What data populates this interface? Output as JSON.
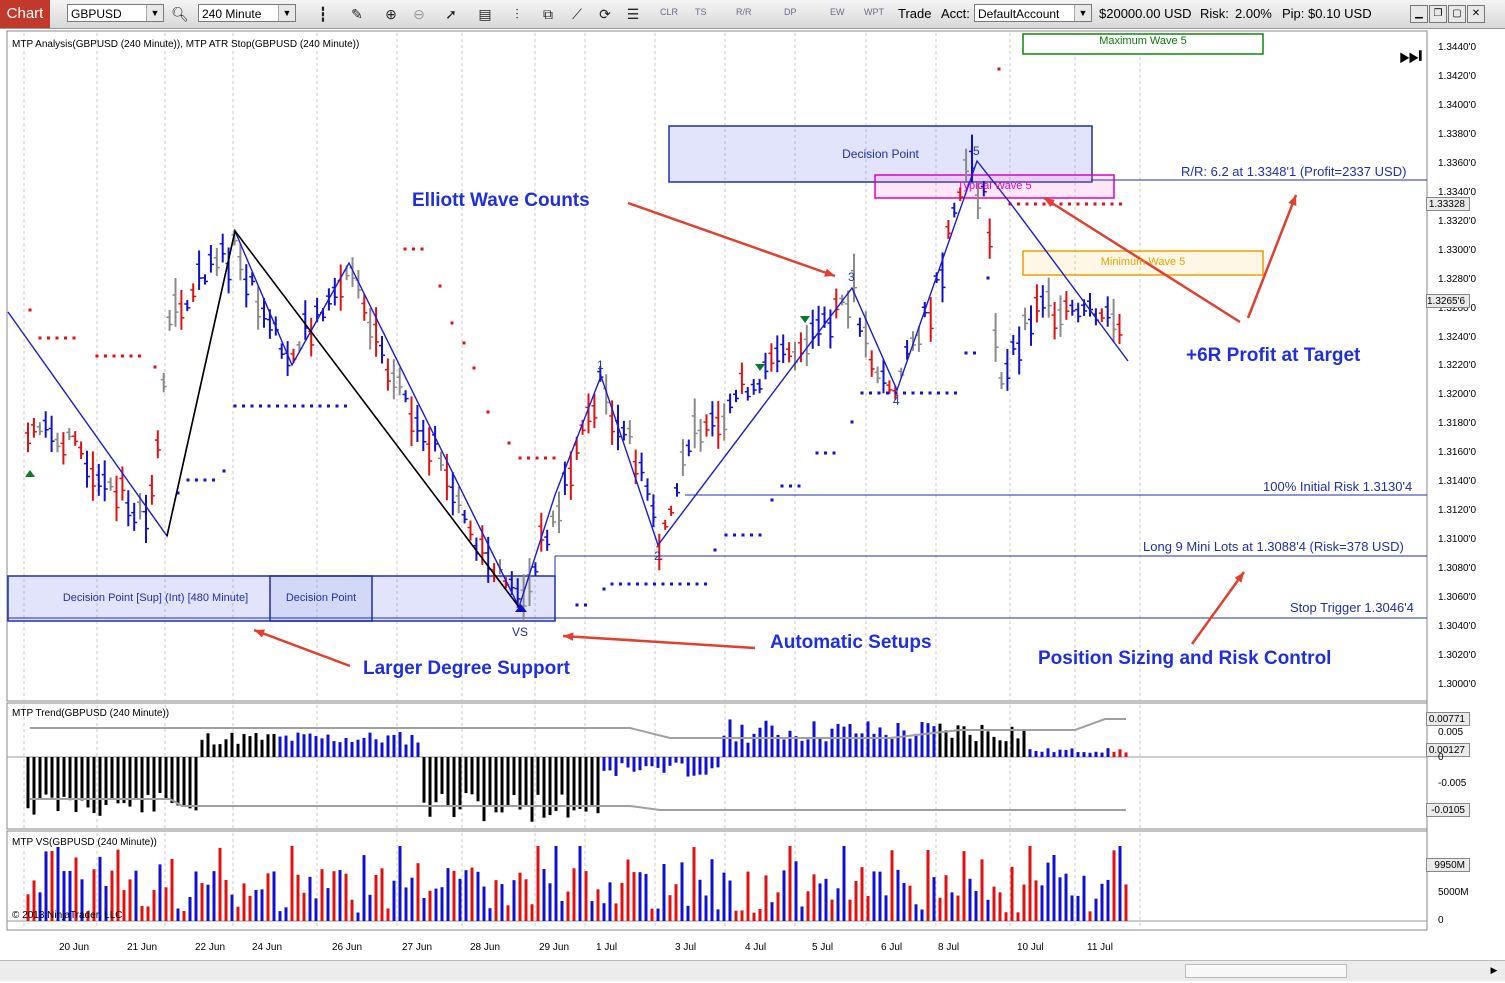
{
  "toolbar": {
    "chart_label": "Chart",
    "instrument": "GBPUSD",
    "interval": "240 Minute",
    "small_buttons": [
      "CLR",
      "TS",
      "R/R",
      "DP",
      "EW",
      "WPT"
    ],
    "trade_label": "Trade",
    "acct_label": "Acct:",
    "account": "DefaultAccount",
    "balance": "$20000.00 USD",
    "risk_label": "Risk:",
    "risk_value": "2.00%",
    "pip_label": "Pip:",
    "pip_value": "$0.10 USD"
  },
  "panels": {
    "price_title": "MTP Analysis(GBPUSD (240 Minute)), MTP ATR Stop(GBPUSD (240 Minute))",
    "trend_title": "MTP Trend(GBPUSD (240 Minute))",
    "vs_title": "MTP VS(GBPUSD (240 Minute))",
    "copyright": "© 2013 NinjaTrader, LLC"
  },
  "zones": {
    "max_wave5": "Maximum Wave 5",
    "decision_point_top": "Decision Point",
    "typical_wave5": "Typical Wave 5",
    "min_wave5": "Minimum Wave 5",
    "decision_point_sup": "Decision Point [Sup] (Int) [480 Minute]",
    "decision_point_low": "Decision Point"
  },
  "trade_lines": {
    "rr": "R/R: 6.2 at 1.3348'1 (Profit=2337 USD)",
    "initial_risk": "100% Initial Risk 1.3130'4",
    "long": "Long 9 Mini Lots at 1.3088'4 (Risk=378 USD)",
    "stop": "Stop Trigger 1.3046'4"
  },
  "wave_labels": {
    "w1": "1",
    "w2": "2",
    "w3": "3",
    "w4": "4",
    "w5": "5",
    "vs": "VS"
  },
  "annotations": {
    "elliott": "Elliott Wave Counts",
    "profit": "+6R Profit at Target",
    "automatic": "Automatic Setups",
    "larger": "Larger Degree Support",
    "position": "Position Sizing and Risk Control"
  },
  "price_axis": [
    "1.3440'0",
    "1.3420'0",
    "1.3400'0",
    "1.3380'0",
    "1.3360'0",
    "1.3340'0",
    "1.3320'0",
    "1.3300'0",
    "1.3280'0",
    "1.3260'0",
    "1.3240'0",
    "1.3220'0",
    "1.3200'0",
    "1.3180'0",
    "1.3160'0",
    "1.3140'0",
    "1.3120'0",
    "1.3100'0",
    "1.3080'0",
    "1.3060'0",
    "1.3040'0",
    "1.3020'0",
    "1.3000'0"
  ],
  "price_tags": {
    "p1": "1.33328",
    "p2": "1.3265'6"
  },
  "trend_axis": {
    "a": "0.00771",
    "b": "0.005",
    "c": "0.00127",
    "d": "0",
    "e": "-0.005",
    "f": "-0.0105"
  },
  "vs_axis": {
    "a": "9950M",
    "b": "5000M",
    "c": "0"
  },
  "dates": [
    "20 Jun",
    "21 Jun",
    "22 Jun",
    "24 Jun",
    "26 Jun",
    "27 Jun",
    "28 Jun",
    "29 Jun",
    "1 Jul",
    "3 Jul",
    "4 Jul",
    "5 Jul",
    "6 Jul",
    "8 Jul",
    "10 Jul",
    "11 Jul"
  ],
  "colors": {
    "up": "#1010d0",
    "down": "#e01010",
    "neutral": "#8a8a8a",
    "accent": "#1f2fe0"
  }
}
